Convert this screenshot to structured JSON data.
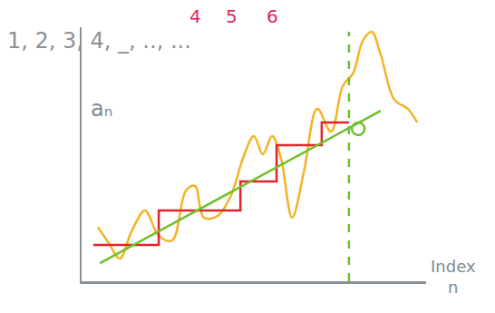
{
  "chart_data": {
    "type": "line",
    "title": "1, 2, 3, 4, _, .., ...",
    "annotations": [
      {
        "text": "4",
        "color": "#e0245e"
      },
      {
        "text": "5",
        "color": "#e0245e"
      },
      {
        "text": "6",
        "color": "#e0245e"
      }
    ],
    "x_label": "Index n",
    "y_label": "aₙ",
    "xlim": [
      0,
      100
    ],
    "ylim": [
      0,
      100
    ],
    "xticks": [],
    "yticks": [],
    "tick_labels": false,
    "grid": false,
    "series": [
      {
        "color": "#f5b225",
        "line_style": "spline",
        "x": [
          4.7,
          7.9,
          11.1,
          14.5,
          18.4,
          22.4,
          26.3,
          30.3,
          32.9,
          35.5,
          39.5,
          43.4,
          46.8,
          50.0,
          52.6,
          55.3,
          57.9,
          61.1,
          64.5,
          68.4,
          72.4,
          75.8,
          78.9,
          81.6,
          84.2,
          86.8,
          90.8,
          94.7,
          97.4
        ],
        "values": [
          21.4,
          15.0,
          8.9,
          19.6,
          27.9,
          17.9,
          16.1,
          35.7,
          37.5,
          25.0,
          25.7,
          33.9,
          48.2,
          57.1,
          50.0,
          57.1,
          48.2,
          25.0,
          42.9,
          67.9,
          58.9,
          76.8,
          82.1,
          94.6,
          98.2,
          89.3,
          71.4,
          67.9,
          62.5
        ]
      },
      {
        "color": "#e0242a",
        "line_style": "step",
        "x": [
          3.4,
          22.4,
          46.1,
          56.6,
          69.7,
          77.6
        ],
        "values": [
          14.3,
          27.9,
          39.3,
          53.6,
          62.5,
          62.5
        ]
      },
      {
        "color": "#6fc02a",
        "line_style": "solid",
        "x": [
          5.3,
          86.8
        ],
        "values": [
          7.1,
          67.1
        ]
      },
      {
        "color": "#6fc02a",
        "line_style": "dashed",
        "x": [
          77.6,
          77.6
        ],
        "values": [
          0,
          98.2
        ]
      },
      {
        "color": "#6fc02a",
        "type": "scatter",
        "marker": "circle-open",
        "x": [
          80.3
        ],
        "values": [
          60.0
        ]
      }
    ]
  }
}
